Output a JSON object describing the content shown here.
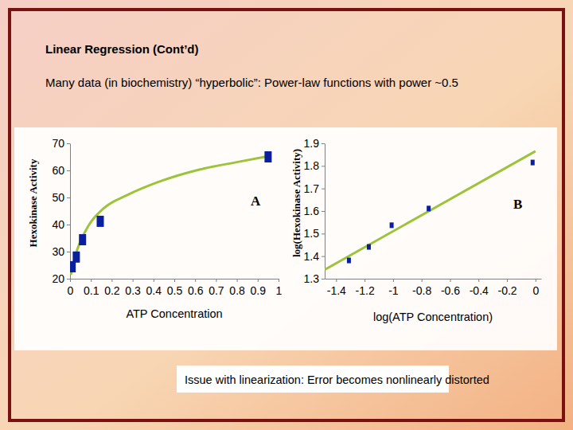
{
  "slide": {
    "title": "Linear Regression (Cont’d)",
    "subtitle": "Many data (in biochemistry) “hyperbolic”: Power-law functions with power ~0.5",
    "footnote": "Issue with linearization: Error becomes nonlinearly distorted"
  },
  "chart_data": [
    {
      "type": "scatter",
      "annotation": "A",
      "x_label": "ATP Concentration",
      "y_label": "Hexokinase Activity",
      "xlim": [
        0,
        1
      ],
      "xticks": [
        0,
        0.1,
        0.2,
        0.3,
        0.4,
        0.5,
        0.6,
        0.7,
        0.8,
        0.9,
        1
      ],
      "ylim": [
        20,
        70
      ],
      "yticks": [
        20,
        30,
        40,
        50,
        60,
        70
      ],
      "grid": false,
      "series": [
        {
          "type": "scatter",
          "marker": "square",
          "color": "#0a1f9e",
          "x": [
            0.01,
            0.03,
            0.06,
            0.145,
            0.95
          ],
          "values": [
            24.4,
            28,
            34.4,
            41.2,
            65
          ]
        },
        {
          "type": "line",
          "line_style": "solid",
          "color": "#9cc43a",
          "x": [
            0.004,
            0.027,
            0.084,
            0.16,
            0.275,
            0.43,
            0.62,
            0.81,
            0.954
          ],
          "values": [
            21.5,
            28.8,
            39,
            45.9,
            50.9,
            55.9,
            60.3,
            63.2,
            65.3
          ]
        }
      ]
    },
    {
      "type": "scatter",
      "annotation": "B",
      "x_label": "log(ATP Concentration)",
      "y_label": "log(Hexokinase Activity)",
      "xlim": [
        -1.48,
        0.04
      ],
      "xticks": [
        -1.4,
        -1.2,
        -1,
        -0.8,
        -0.6,
        -0.4,
        -0.2,
        0
      ],
      "ylim": [
        1.3,
        1.9
      ],
      "yticks": [
        1.3,
        1.4,
        1.5,
        1.6,
        1.7,
        1.8,
        1.9
      ],
      "grid": false,
      "series": [
        {
          "type": "scatter",
          "marker": "square",
          "color": "#0a1f9e",
          "x": [
            -1.31,
            -1.17,
            -1.01,
            -0.75,
            -0.02
          ],
          "values": [
            1.381,
            1.441,
            1.537,
            1.611,
            1.815
          ]
        },
        {
          "type": "line",
          "line_style": "solid",
          "color": "#9cc43a",
          "x": [
            -1.48,
            0
          ],
          "values": [
            1.34,
            1.865
          ]
        }
      ]
    }
  ]
}
